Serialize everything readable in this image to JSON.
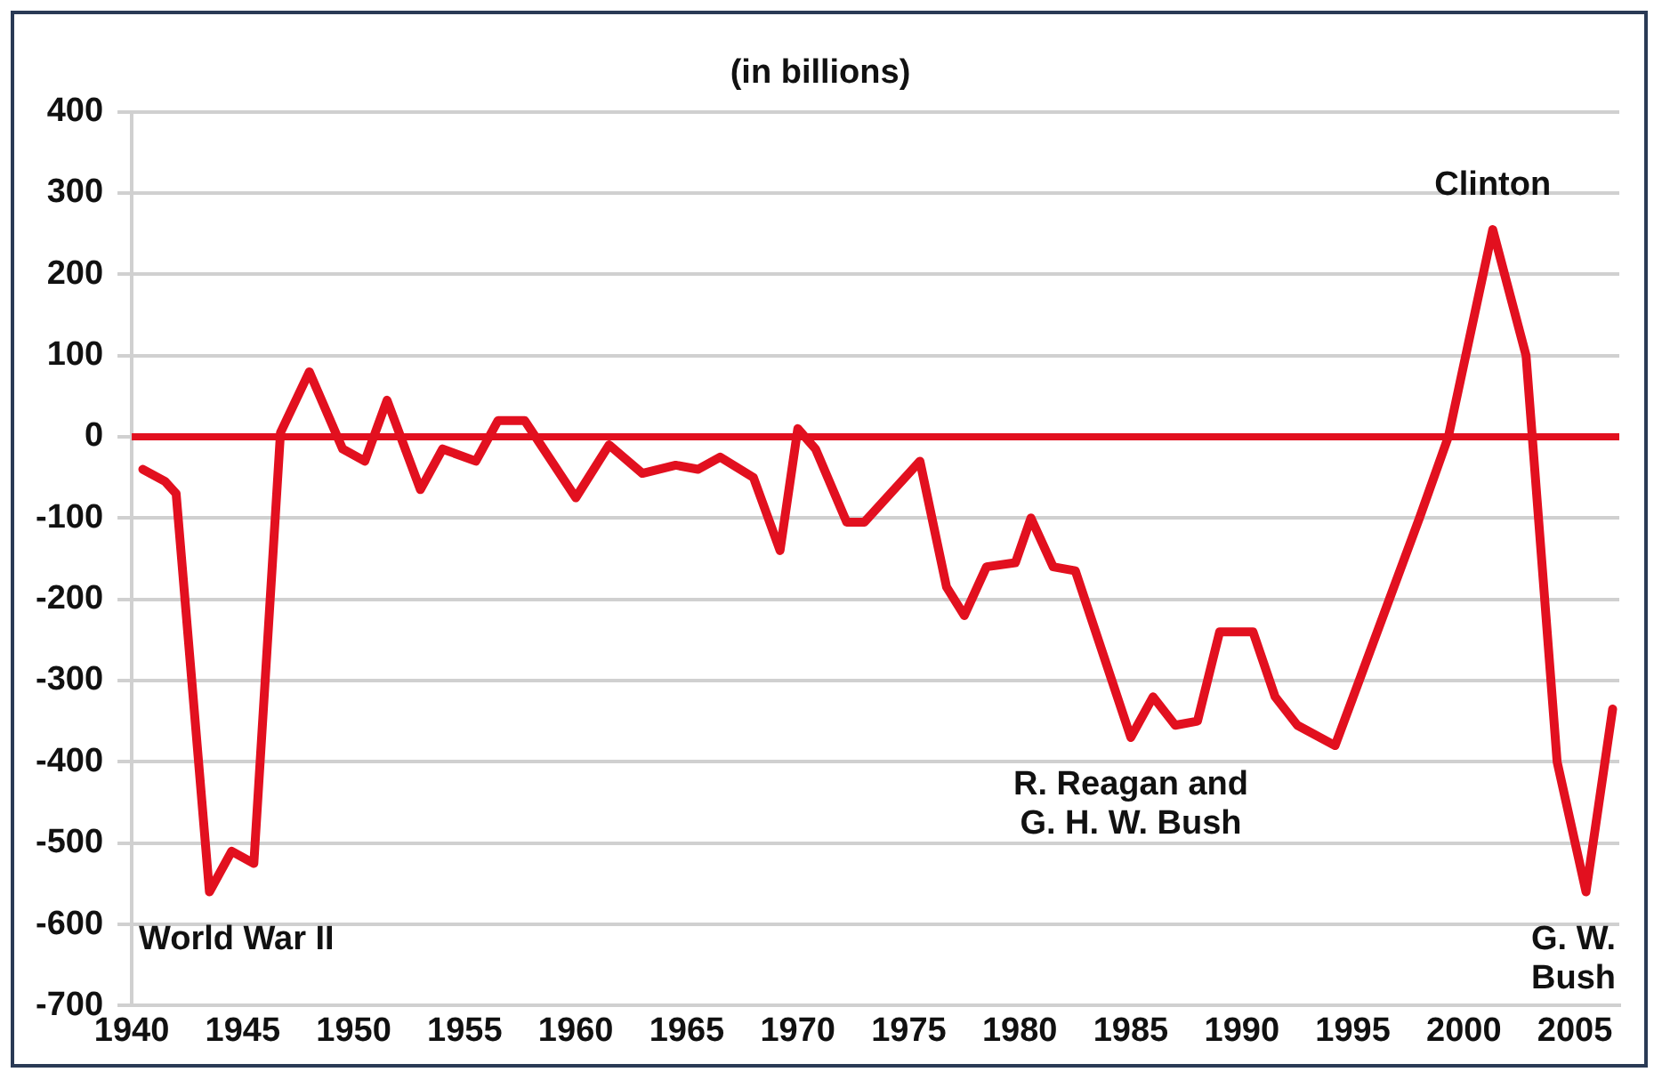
{
  "chart_data": {
    "type": "line",
    "title": "(in billions)",
    "series": [
      {
        "color": "#e2101f",
        "x": [
          1940.5,
          1941.5,
          1942,
          1943.5,
          1944.5,
          1945.5,
          1946.7,
          1948,
          1949.5,
          1950.5,
          1951.5,
          1953,
          1954,
          1955.5,
          1956.5,
          1957.7,
          1960,
          1961.5,
          1963,
          1964.5,
          1965.5,
          1966.5,
          1968,
          1969.2,
          1970,
          1970.8,
          1972.2,
          1973,
          1975.5,
          1976.7,
          1977.5,
          1978.5,
          1979.8,
          1980.5,
          1981.5,
          1982.5,
          1985,
          1986,
          1987,
          1988,
          1989,
          1990.5,
          1991.5,
          1992.5,
          1994.2,
          1998,
          1999.3,
          2001.3,
          2002.8,
          2004.2,
          2005.5,
          2006.7
        ],
        "values": [
          -40,
          -55,
          -70,
          -560,
          -510,
          -525,
          5,
          80,
          -15,
          -30,
          45,
          -65,
          -15,
          -30,
          20,
          20,
          -75,
          -10,
          -45,
          -35,
          -40,
          -25,
          -50,
          -140,
          10,
          -15,
          -105,
          -105,
          -30,
          -185,
          -220,
          -160,
          -155,
          -100,
          -160,
          -165,
          -370,
          -320,
          -355,
          -350,
          -240,
          -240,
          -320,
          -355,
          -380,
          -100,
          0,
          255,
          100,
          -400,
          -560,
          -335
        ]
      }
    ],
    "xlim": [
      1940,
      2007
    ],
    "xticks": [
      1940,
      1945,
      1950,
      1955,
      1960,
      1965,
      1970,
      1975,
      1980,
      1985,
      1990,
      1995,
      2000,
      2005
    ],
    "ylim": [
      -700,
      400
    ],
    "yticks": [
      -700,
      -600,
      -500,
      -400,
      -300,
      -200,
      -100,
      0,
      100,
      200,
      300,
      400
    ],
    "grid": "y",
    "legend": false,
    "marker": "none",
    "line_style": "solid",
    "ref_lines": [
      {
        "axis": "y",
        "value": 0,
        "color": "#e2101f"
      }
    ],
    "annotations": [
      {
        "text": "World War II",
        "x": 1943.5,
        "y": -560
      },
      {
        "text": "R. Reagan and\nG. H. W. Bush",
        "x": 1985,
        "y": -370
      },
      {
        "text": "Clinton",
        "x": 2001.3,
        "y": 255
      },
      {
        "text": "G. W.\nBush",
        "x": 2005.5,
        "y": -560
      }
    ]
  }
}
